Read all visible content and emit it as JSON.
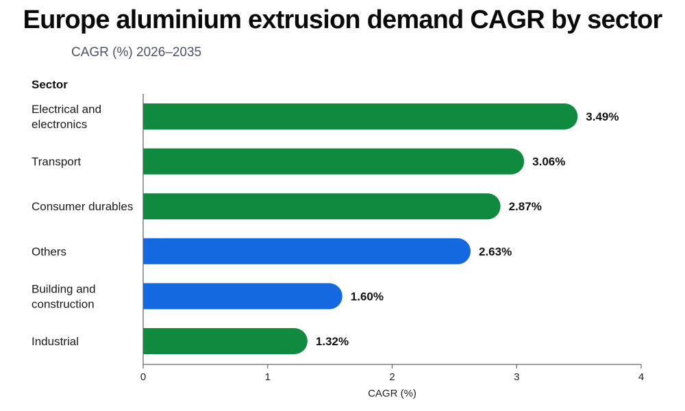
{
  "chart_data": {
    "type": "bar",
    "orientation": "horizontal",
    "title": "Europe aluminium extrusion demand CAGR by sector",
    "subtitle": "CAGR (%) 2026–2035",
    "ylabel": "Sector",
    "xlabel": "CAGR (%)",
    "xlim": [
      0,
      4
    ],
    "xticks": [
      "0",
      "1",
      "2",
      "3",
      "4"
    ],
    "grid": false,
    "categories": [
      [
        "Electrical and",
        "electronics"
      ],
      [
        "Transport"
      ],
      [
        "Consumer durables"
      ],
      [
        "Others"
      ],
      [
        "Building and",
        "construction"
      ],
      [
        "Industrial"
      ]
    ],
    "values": [
      3.49,
      3.06,
      2.87,
      2.63,
      1.6,
      1.32
    ],
    "value_labels": [
      "3.49%",
      "3.06%",
      "2.87%",
      "2.63%",
      "1.60%",
      "1.32%"
    ],
    "bar_colors": [
      "#108a3e",
      "#108a3e",
      "#108a3e",
      "#1469e0",
      "#1469e0",
      "#108a3e"
    ]
  }
}
